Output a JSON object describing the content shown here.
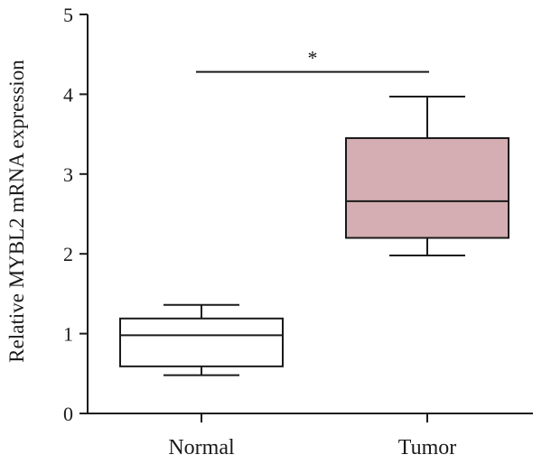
{
  "chart_data": {
    "type": "box",
    "title": "",
    "xlabel": "",
    "ylabel": "Relative MYBL2 mRNA expression",
    "ylim": [
      0,
      5
    ],
    "yticks": [
      0,
      1,
      2,
      3,
      4,
      5
    ],
    "grid": false,
    "categories": [
      "Normal",
      "Tumor"
    ],
    "boxes": [
      {
        "category": "Normal",
        "min": 0.48,
        "q1": 0.59,
        "median": 0.98,
        "q3": 1.19,
        "max": 1.36,
        "fill": "#ffffff"
      },
      {
        "category": "Tumor",
        "min": 1.98,
        "q1": 2.2,
        "median": 2.66,
        "q3": 3.45,
        "max": 3.97,
        "fill": "#d4aeb2"
      }
    ],
    "annotations": [
      {
        "type": "significance",
        "label": "*",
        "from": "Normal",
        "to": "Tumor",
        "y": 4.28
      }
    ],
    "colors": {
      "normal_box": "#ffffff",
      "tumor_box": "#d4aeb2",
      "line": "#1a1a1a"
    }
  }
}
